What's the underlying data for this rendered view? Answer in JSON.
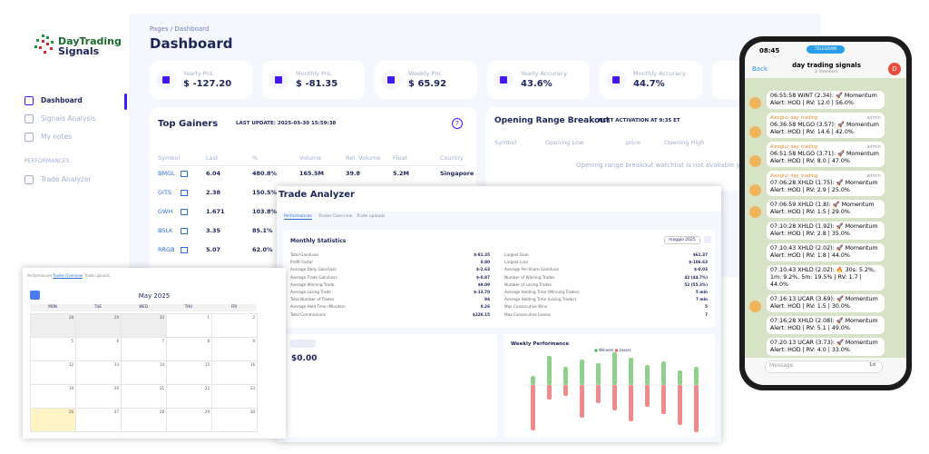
{
  "sidebar": {
    "logo": [
      "DayTrading",
      "Signals"
    ],
    "nav": [
      "Dashboard",
      "Signals Analysis",
      "My notes"
    ],
    "section": "PERFORMANCES",
    "nav2": [
      "Trade Analyzer"
    ]
  },
  "header": {
    "breadcrumb": "Pages / Dashboard",
    "title": "Dashboard"
  },
  "stats": [
    {
      "label": "Yearly PnL",
      "value": "$ -127.20"
    },
    {
      "label": "Monthly PnL",
      "value": "$ -81.35"
    },
    {
      "label": "Weekly PnL",
      "value": "$ 65.92"
    },
    {
      "label": "Yearly Accuracy",
      "value": "43.6%"
    },
    {
      "label": "Monthly Accuracy",
      "value": "44.7%"
    }
  ],
  "top_gainers": {
    "title": "Top Gainers",
    "update": "LAST UPDATE: 2025-05-30 15:59:38",
    "columns": [
      "Symbol",
      "Last",
      "%",
      "Volume",
      "Rel. Volume",
      "Float",
      "Country"
    ],
    "rows": [
      [
        "BMGL",
        "6.04",
        "480.8%",
        "165.5M",
        "39.8",
        "5.2M",
        "Singapore"
      ],
      [
        "GITS",
        "2.38",
        "150.5%"
      ],
      [
        "GWH",
        "1.671",
        "103.8%"
      ],
      [
        "BSLK",
        "3.35",
        "85.1%"
      ],
      [
        "RRGB",
        "5.07",
        "62.0%"
      ]
    ]
  },
  "orb": {
    "title": "Opening Range Breakout",
    "next": "NEXT ACTIVATION AT 9:35 ET",
    "columns": [
      "Symbol",
      "Opening Low",
      "price",
      "Opening High"
    ],
    "empty": "Opening range breakout watchlist is not available yet."
  },
  "trade_analyzer": {
    "title": "Trade Analyzer",
    "tabs": [
      "Performances",
      "Trades Overview",
      "Trade uploads"
    ],
    "monthly_title": "Monthly Statistics",
    "month": "maggio 2025",
    "left": [
      [
        "Total Gain/Loss",
        "$-81.35"
      ],
      [
        "Profit Factor",
        "0.80"
      ],
      [
        "Average Daily Gain/Loss",
        "$-2.63"
      ],
      [
        "Average Trade Gain/Loss",
        "$-0.87"
      ],
      [
        "Average Winning Trade",
        "$9.09"
      ],
      [
        "Average Losing Trade",
        "$-13.70"
      ],
      [
        "Total Number of Trades",
        "94"
      ],
      [
        "Average Hold Time (Minutes)",
        "0.26"
      ],
      [
        "Total Commissions",
        "$220.15"
      ]
    ],
    "right": [
      [
        "Largest Gain",
        "$61.37"
      ],
      [
        "Largest Loss",
        "$-106.63"
      ],
      [
        "Average Per-Share Gain/Loss",
        "$-0.03"
      ],
      [
        "Number of Winning Trades",
        "42 (44.7%)"
      ],
      [
        "Number of Losing Trades",
        "52 (55.3%)"
      ],
      [
        "Average Holding Time (Winning Trades)",
        "5 min"
      ],
      [
        "Average Holding Time (Losing Trades)",
        "7 min"
      ],
      [
        "Max Consecutive Wins",
        "5"
      ],
      [
        "Max Consecutive Losses",
        "7"
      ]
    ],
    "balance": "$0.00",
    "weekly_title": "Weekly Performance",
    "weekly_legend": [
      "Winners",
      "Losers"
    ],
    "weekly_winners": [
      5,
      16,
      10,
      14,
      12,
      18,
      15,
      11,
      13,
      8,
      10
    ],
    "weekly_losers": [
      -25,
      -8,
      -6,
      -18,
      -10,
      -14,
      -20,
      -12,
      -16,
      -22,
      -26
    ]
  },
  "calendar": {
    "tabs": [
      "Performances",
      "Trades Overview",
      "Trade uploads"
    ],
    "title": "May 2025",
    "days": [
      "MON",
      "TUE",
      "WED",
      "THU",
      "FRI"
    ],
    "weeks": [
      [
        "28",
        "29",
        "30",
        "1",
        "2"
      ],
      [
        "5",
        "6",
        "7",
        "8",
        "9"
      ],
      [
        "12",
        "13",
        "14",
        "15",
        "16"
      ],
      [
        "19",
        "20",
        "21",
        "22",
        "23"
      ],
      [
        "26",
        "27",
        "28",
        "29",
        "30"
      ]
    ]
  },
  "phone": {
    "time": "08:45",
    "app": "TELEGRAM",
    "back": "Back",
    "chat": "day trading signals",
    "members": "2 members",
    "avatar": "D",
    "input": "Message",
    "timer": "1d",
    "messages": [
      {
        "text": "06:55:58 WINT (2.34): 🚀 Momentum Alert: HOD | RV: 12.0 | 56.0%"
      },
      {
        "sender": "Alexgiul_day_trading",
        "role": "admin",
        "text": "06:36:58 MLGO (3.57): 🚀 Momentum Alert: HOD | RV: 14.6 | 42.0%"
      },
      {
        "sender": "Alexgiul_day_trading",
        "role": "admin",
        "text": "06:51:58 MLGO (3.71): 🚀 Momentum Alert: HOD | RV: 8.0 | 47.0%"
      },
      {
        "sender": "Alexgiul_day_trading",
        "role": "admin",
        "text": "07:06:28 XHLD (1.75): 🚀 Momentum Alert: HOD | RV: 2.9 | 25.0%"
      },
      {
        "text": "07:06:59 XHLD (1.8): 🚀 Momentum Alert: HOD | RV: 1.5 | 29.0%"
      },
      {
        "text": "07:10:28 XHLD (1.92): 🚀 Momentum Alert: HOD | RV: 2.8 | 35.0%"
      },
      {
        "text": "07:10:43 XHLD (2.02): 🚀 Momentum Alert: HOD | RV: 1.8 | 44.0%"
      },
      {
        "text": "07:10:43 XHLD (2.02): 🔥 30s: 5.2%, 1m: 9.2%, 5m: 19.5% | RV: 1.7 | 44.0%"
      },
      {
        "text": "07:16:13 UCAR (3.69): 🚀 Momentum Alert: HOD | RV: 1.5 | 30.0%"
      },
      {
        "text": "07:16:28 XHLD (2.08): 🚀 Momentum Alert: HOD | RV: 5.1 | 49.0%"
      },
      {
        "text": "07:20:13 UCAR (3.73): 🚀 Momentum Alert: HOD | RV: 4.0 | 33.0%"
      }
    ]
  }
}
